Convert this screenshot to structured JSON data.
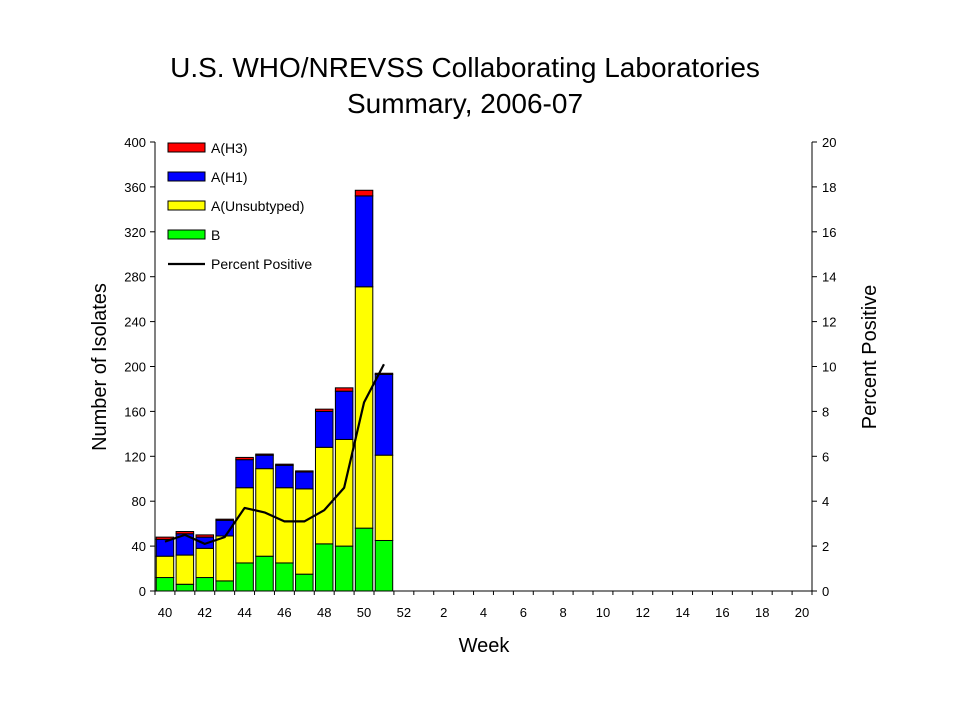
{
  "chart_data": {
    "type": "bar",
    "stacked": true,
    "title": "U.S. WHO/NREVSS Collaborating Laboratories",
    "subtitle": "Summary, 2006-07",
    "xlabel": "Week",
    "ylabel": "Number of Isolates",
    "y2label": "Percent Positive",
    "ylim": [
      0,
      400
    ],
    "y2lim": [
      0,
      20
    ],
    "yticks": [
      "0",
      "40",
      "80",
      "120",
      "160",
      "200",
      "240",
      "280",
      "320",
      "360",
      "400"
    ],
    "y2ticks": [
      "0",
      "2",
      "4",
      "6",
      "8",
      "10",
      "12",
      "14",
      "16",
      "18",
      "20"
    ],
    "xtick_labels": [
      "40",
      "42",
      "44",
      "46",
      "48",
      "50",
      "52",
      "2",
      "4",
      "6",
      "8",
      "10",
      "12",
      "14",
      "16",
      "18",
      "20"
    ],
    "weeks": [
      "40",
      "41",
      "42",
      "43",
      "44",
      "45",
      "46",
      "47",
      "48",
      "49",
      "50",
      "51",
      "52",
      "1",
      "2",
      "3",
      "4",
      "5",
      "6",
      "7",
      "8",
      "9",
      "10",
      "11",
      "12",
      "13",
      "14",
      "15",
      "16",
      "17",
      "18",
      "19",
      "20"
    ],
    "grid": false,
    "legend_position": "top-left",
    "legend": [
      "A(H3)",
      "A(H1)",
      "A(Unsubtyped)",
      "B",
      "Percent Positive"
    ],
    "series": [
      {
        "name": "B",
        "color": "#00ff00",
        "values": [
          12,
          6,
          12,
          9,
          25,
          31,
          25,
          15,
          42,
          40,
          56,
          45
        ]
      },
      {
        "name": "A(Unsubtyped)",
        "color": "#ffff00",
        "values": [
          19,
          26,
          26,
          40,
          67,
          78,
          67,
          76,
          86,
          95,
          215,
          76
        ]
      },
      {
        "name": "A(H1)",
        "color": "#0000ff",
        "values": [
          15,
          19,
          10,
          14,
          25,
          12,
          20,
          15,
          32,
          43,
          81,
          72
        ]
      },
      {
        "name": "A(H3)",
        "color": "#ff0000",
        "values": [
          2,
          2,
          2,
          1,
          2,
          1,
          1,
          1,
          2,
          3,
          5,
          1
        ]
      }
    ],
    "line": {
      "name": "Percent Positive",
      "color": "#000000",
      "values": [
        2.2,
        2.5,
        2.1,
        2.4,
        3.7,
        3.5,
        3.1,
        3.1,
        3.6,
        4.6,
        8.4,
        10.1
      ]
    }
  }
}
